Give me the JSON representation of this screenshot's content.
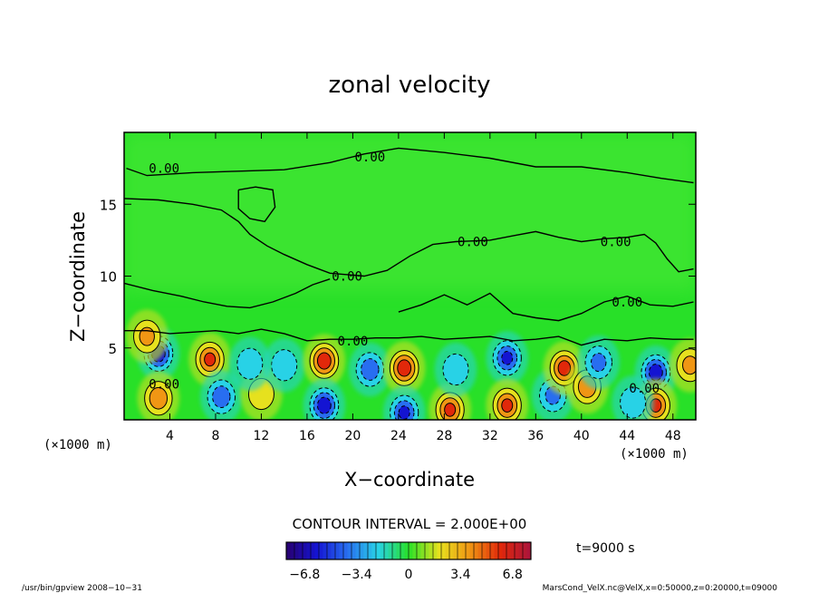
{
  "chart_data": {
    "type": "heatmap",
    "title": "zonal velocity",
    "xlabel": "X−coordinate",
    "ylabel": "Z−coordinate",
    "x_unit_left": "(×1000 m)",
    "x_unit_right": "(×1000 m)",
    "xlim": [
      0,
      50
    ],
    "ylim": [
      0,
      20
    ],
    "x_ticks": [
      4,
      8,
      12,
      16,
      20,
      24,
      28,
      32,
      36,
      40,
      44,
      48
    ],
    "y_ticks": [
      5,
      10,
      15
    ],
    "contour_interval_label": "CONTOUR INTERVAL = 2.000E+00",
    "contour_label": "0.00",
    "time_label": "t=9000 s",
    "colorbar_ticks": [
      "−6.8",
      "−3.4",
      "0",
      "3.4",
      "6.8"
    ],
    "colorbar_range": [
      -8,
      8
    ],
    "footer_left": "/usr/bin/gpview   2008−10−31",
    "footer_right": "MarsCond_VelX.nc@VelX,x=0:50000,z=0:20000,t=09000",
    "colors": {
      "negative_strong": "#1010d0",
      "negative": "#20a0f0",
      "zero": "#20e020",
      "positive": "#f0e020",
      "positive_strong": "#e02000"
    },
    "vortices": [
      {
        "x": 3.0,
        "z": 4.6,
        "value": -7.0
      },
      {
        "x": 2.0,
        "z": 5.8,
        "value": 4.0
      },
      {
        "x": 7.5,
        "z": 4.2,
        "value": 6.0
      },
      {
        "x": 8.5,
        "z": 1.6,
        "value": -5.0
      },
      {
        "x": 3.0,
        "z": 1.5,
        "value": 5.0
      },
      {
        "x": 12.0,
        "z": 1.8,
        "value": 3.0
      },
      {
        "x": 14.0,
        "z": 3.8,
        "value": -3.0
      },
      {
        "x": 17.5,
        "z": 4.1,
        "value": 7.0
      },
      {
        "x": 17.5,
        "z": 1.0,
        "value": -7.0
      },
      {
        "x": 21.5,
        "z": 3.5,
        "value": -5.0
      },
      {
        "x": 24.5,
        "z": 3.6,
        "value": 7.0
      },
      {
        "x": 24.5,
        "z": 0.5,
        "value": -6.0
      },
      {
        "x": 28.5,
        "z": 0.7,
        "value": 6.0
      },
      {
        "x": 29.0,
        "z": 3.5,
        "value": -3.0
      },
      {
        "x": 33.5,
        "z": 4.3,
        "value": -6.0
      },
      {
        "x": 33.5,
        "z": 1.0,
        "value": 6.0
      },
      {
        "x": 37.5,
        "z": 1.7,
        "value": -4.0
      },
      {
        "x": 38.5,
        "z": 3.6,
        "value": 6.5
      },
      {
        "x": 40.5,
        "z": 2.3,
        "value": 5.0
      },
      {
        "x": 41.5,
        "z": 4.0,
        "value": -4.0
      },
      {
        "x": 46.5,
        "z": 3.3,
        "value": -7.0
      },
      {
        "x": 46.5,
        "z": 1.0,
        "value": 6.0
      },
      {
        "x": 44.5,
        "z": 1.2,
        "value": -3.0
      },
      {
        "x": 11.0,
        "z": 3.9,
        "value": -3.0
      },
      {
        "x": 49.5,
        "z": 3.8,
        "value": 4.0
      }
    ],
    "contour_label_positions": [
      {
        "x": 3.5,
        "z": 17.5
      },
      {
        "x": 21.5,
        "z": 18.3
      },
      {
        "x": 30.5,
        "z": 12.4
      },
      {
        "x": 43.0,
        "z": 12.4
      },
      {
        "x": 19.5,
        "z": 10.0
      },
      {
        "x": 44.0,
        "z": 8.2
      },
      {
        "x": 20.0,
        "z": 5.5
      },
      {
        "x": 3.5,
        "z": 2.5
      },
      {
        "x": 45.5,
        "z": 2.2
      }
    ],
    "zero_contours": [
      [
        [
          0.2,
          17.5
        ],
        [
          2.0,
          17.0
        ],
        [
          6.0,
          17.2
        ],
        [
          10.0,
          17.3
        ],
        [
          14.0,
          17.4
        ],
        [
          18.0,
          17.9
        ],
        [
          21.0,
          18.5
        ],
        [
          24.0,
          18.9
        ],
        [
          28.0,
          18.6
        ],
        [
          32.0,
          18.2
        ],
        [
          36.0,
          17.6
        ],
        [
          40.0,
          17.6
        ],
        [
          44.0,
          17.2
        ],
        [
          47.0,
          16.8
        ],
        [
          49.8,
          16.5
        ]
      ],
      [
        [
          0.0,
          15.4
        ],
        [
          3.0,
          15.3
        ],
        [
          6.0,
          15.0
        ],
        [
          8.5,
          14.6
        ],
        [
          10.0,
          13.8
        ],
        [
          11.0,
          12.9
        ],
        [
          12.5,
          12.1
        ],
        [
          14.0,
          11.5
        ],
        [
          16.0,
          10.8
        ],
        [
          18.0,
          10.2
        ],
        [
          21.0,
          10.0
        ],
        [
          23.0,
          10.4
        ],
        [
          25.0,
          11.4
        ],
        [
          27.0,
          12.2
        ],
        [
          29.0,
          12.4
        ],
        [
          32.0,
          12.5
        ],
        [
          34.0,
          12.8
        ],
        [
          36.0,
          13.1
        ],
        [
          38.0,
          12.7
        ],
        [
          40.0,
          12.4
        ],
        [
          42.0,
          12.6
        ],
        [
          44.0,
          12.7
        ],
        [
          45.5,
          12.9
        ],
        [
          46.5,
          12.3
        ],
        [
          47.5,
          11.2
        ],
        [
          48.5,
          10.3
        ],
        [
          49.8,
          10.5
        ]
      ],
      [
        [
          0.0,
          9.5
        ],
        [
          2.5,
          9.0
        ],
        [
          5.0,
          8.6
        ],
        [
          7.0,
          8.2
        ],
        [
          9.0,
          7.9
        ],
        [
          11.0,
          7.8
        ],
        [
          13.0,
          8.2
        ],
        [
          15.0,
          8.8
        ],
        [
          16.5,
          9.4
        ],
        [
          18.0,
          9.8
        ]
      ],
      [
        [
          10.0,
          16.0
        ],
        [
          11.5,
          16.2
        ],
        [
          13.0,
          16.0
        ],
        [
          13.2,
          14.8
        ],
        [
          12.3,
          13.8
        ],
        [
          11.0,
          14.0
        ],
        [
          10.0,
          14.7
        ],
        [
          10.0,
          16.0
        ]
      ],
      [
        [
          24.0,
          7.5
        ],
        [
          26.0,
          8.0
        ],
        [
          28.0,
          8.7
        ],
        [
          30.0,
          8.0
        ],
        [
          32.0,
          8.8
        ],
        [
          34.0,
          7.4
        ],
        [
          36.0,
          7.1
        ],
        [
          38.0,
          6.9
        ],
        [
          40.0,
          7.4
        ],
        [
          42.0,
          8.2
        ],
        [
          44.0,
          8.6
        ],
        [
          46.0,
          8.0
        ],
        [
          48.0,
          7.9
        ],
        [
          49.8,
          8.2
        ]
      ],
      [
        [
          0.0,
          6.2
        ],
        [
          2.0,
          6.2
        ],
        [
          4.0,
          6.0
        ],
        [
          6.0,
          6.1
        ],
        [
          8.0,
          6.2
        ],
        [
          10.0,
          6.0
        ],
        [
          12.0,
          6.3
        ],
        [
          14.0,
          6.0
        ],
        [
          16.0,
          5.5
        ],
        [
          18.0,
          5.6
        ],
        [
          20.0,
          5.6
        ],
        [
          22.0,
          5.7
        ],
        [
          24.0,
          5.7
        ],
        [
          26.0,
          5.8
        ],
        [
          28.0,
          5.6
        ],
        [
          30.0,
          5.7
        ],
        [
          32.0,
          5.8
        ],
        [
          34.0,
          5.5
        ],
        [
          36.0,
          5.6
        ],
        [
          38.0,
          5.8
        ],
        [
          40.0,
          5.2
        ],
        [
          42.0,
          5.6
        ],
        [
          44.0,
          5.5
        ],
        [
          46.0,
          5.7
        ],
        [
          48.0,
          5.6
        ],
        [
          49.8,
          5.6
        ]
      ]
    ]
  }
}
